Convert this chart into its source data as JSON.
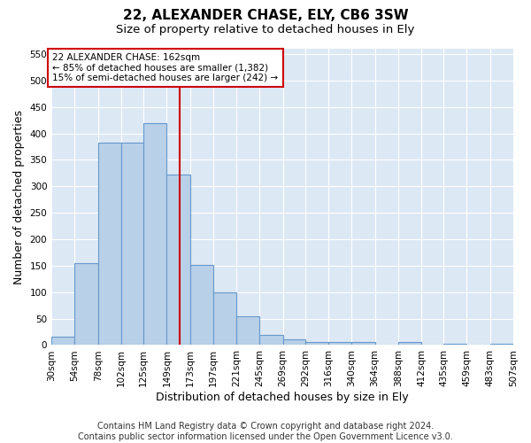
{
  "title1": "22, ALEXANDER CHASE, ELY, CB6 3SW",
  "title2": "Size of property relative to detached houses in Ely",
  "xlabel": "Distribution of detached houses by size in Ely",
  "ylabel": "Number of detached properties",
  "footnote": "Contains HM Land Registry data © Crown copyright and database right 2024.\nContains public sector information licensed under the Open Government Licence v3.0.",
  "bin_edges": [
    30,
    54,
    78,
    102,
    125,
    149,
    173,
    197,
    221,
    245,
    269,
    292,
    316,
    340,
    364,
    388,
    412,
    435,
    459,
    483,
    507
  ],
  "bin_labels": [
    "30sqm",
    "54sqm",
    "78sqm",
    "102sqm",
    "125sqm",
    "149sqm",
    "173sqm",
    "197sqm",
    "221sqm",
    "245sqm",
    "269sqm",
    "292sqm",
    "316sqm",
    "340sqm",
    "364sqm",
    "388sqm",
    "412sqm",
    "435sqm",
    "459sqm",
    "483sqm",
    "507sqm"
  ],
  "counts": [
    15,
    155,
    383,
    383,
    420,
    322,
    152,
    100,
    55,
    20,
    10,
    5,
    5,
    5,
    0,
    5,
    0,
    3,
    0,
    3
  ],
  "property_size": 162,
  "bar_color": "#b8d0e8",
  "bar_edge_color": "#6699cc",
  "line_color": "#cc0000",
  "annotation_text": "22 ALEXANDER CHASE: 162sqm\n← 85% of detached houses are smaller (1,382)\n15% of semi-detached houses are larger (242) →",
  "annotation_box_color": "#ffffff",
  "annotation_box_edge": "#cc0000",
  "ylim": [
    0,
    560
  ],
  "yticks": [
    0,
    50,
    100,
    150,
    200,
    250,
    300,
    350,
    400,
    450,
    500,
    550
  ],
  "background_color": "#dde8f5",
  "grid_color": "#ffffff",
  "title_fontsize": 11,
  "subtitle_fontsize": 9.5,
  "ylabel_fontsize": 9,
  "xlabel_fontsize": 9,
  "tick_fontsize": 7.5,
  "footnote_fontsize": 7
}
